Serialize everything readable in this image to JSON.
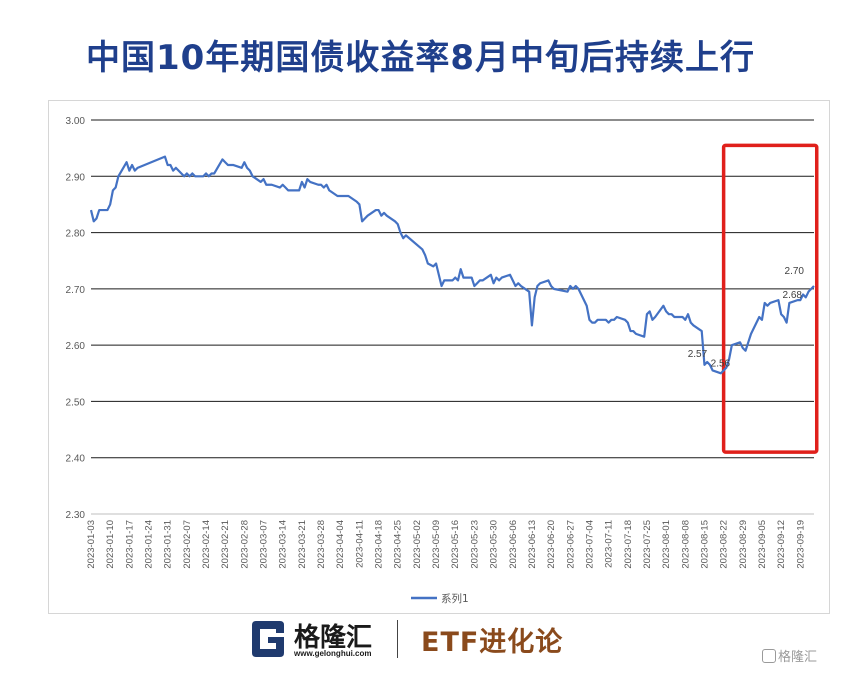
{
  "header": {
    "title": "中国10年期国债收益率8月中旬后持续上行"
  },
  "chart_data": {
    "type": "line",
    "ylim": [
      2.3,
      3.0
    ],
    "yticks": [
      "3.00",
      "2.90",
      "2.80",
      "2.70",
      "2.60",
      "2.50",
      "2.40",
      "2.30"
    ],
    "xticks": [
      "2023-01-03",
      "2023-01-10",
      "2023-01-17",
      "2023-01-24",
      "2023-01-31",
      "2023-02-07",
      "2023-02-14",
      "2023-02-21",
      "2023-02-28",
      "2023-03-07",
      "2023-03-14",
      "2023-03-21",
      "2023-03-28",
      "2023-04-04",
      "2023-04-11",
      "2023-04-18",
      "2023-04-25",
      "2023-05-02",
      "2023-05-09",
      "2023-05-16",
      "2023-05-23",
      "2023-05-30",
      "2023-06-06",
      "2023-06-13",
      "2023-06-20",
      "2023-06-27",
      "2023-07-04",
      "2023-07-11",
      "2023-07-18",
      "2023-07-25",
      "2023-08-01",
      "2023-08-08",
      "2023-08-15",
      "2023-08-22",
      "2023-08-29",
      "2023-09-05",
      "2023-09-12",
      "2023-09-19"
    ],
    "x_end": "2023-09-24",
    "series": [
      {
        "name": "系列1",
        "color": "#4472c4",
        "points": [
          [
            "2023-01-03",
            2.84
          ],
          [
            "2023-01-04",
            2.82
          ],
          [
            "2023-01-05",
            2.825
          ],
          [
            "2023-01-06",
            2.84
          ],
          [
            "2023-01-09",
            2.84
          ],
          [
            "2023-01-10",
            2.85
          ],
          [
            "2023-01-11",
            2.875
          ],
          [
            "2023-01-12",
            2.88
          ],
          [
            "2023-01-13",
            2.9
          ],
          [
            "2023-01-16",
            2.925
          ],
          [
            "2023-01-17",
            2.91
          ],
          [
            "2023-01-18",
            2.92
          ],
          [
            "2023-01-19",
            2.91
          ],
          [
            "2023-01-20",
            2.915
          ],
          [
            "2023-01-30",
            2.935
          ],
          [
            "2023-01-31",
            2.92
          ],
          [
            "2023-02-01",
            2.92
          ],
          [
            "2023-02-02",
            2.91
          ],
          [
            "2023-02-03",
            2.915
          ],
          [
            "2023-02-06",
            2.9
          ],
          [
            "2023-02-07",
            2.905
          ],
          [
            "2023-02-08",
            2.9
          ],
          [
            "2023-02-09",
            2.905
          ],
          [
            "2023-02-10",
            2.9
          ],
          [
            "2023-02-13",
            2.9
          ],
          [
            "2023-02-14",
            2.905
          ],
          [
            "2023-02-15",
            2.9
          ],
          [
            "2023-02-16",
            2.905
          ],
          [
            "2023-02-17",
            2.905
          ],
          [
            "2023-02-20",
            2.93
          ],
          [
            "2023-02-21",
            2.925
          ],
          [
            "2023-02-22",
            2.92
          ],
          [
            "2023-02-23",
            2.92
          ],
          [
            "2023-02-24",
            2.92
          ],
          [
            "2023-02-27",
            2.915
          ],
          [
            "2023-02-28",
            2.925
          ],
          [
            "2023-03-01",
            2.915
          ],
          [
            "2023-03-02",
            2.91
          ],
          [
            "2023-03-03",
            2.9
          ],
          [
            "2023-03-06",
            2.89
          ],
          [
            "2023-03-07",
            2.895
          ],
          [
            "2023-03-08",
            2.885
          ],
          [
            "2023-03-09",
            2.885
          ],
          [
            "2023-03-10",
            2.885
          ],
          [
            "2023-03-13",
            2.88
          ],
          [
            "2023-03-14",
            2.885
          ],
          [
            "2023-03-15",
            2.88
          ],
          [
            "2023-03-16",
            2.875
          ],
          [
            "2023-03-17",
            2.875
          ],
          [
            "2023-03-20",
            2.875
          ],
          [
            "2023-03-21",
            2.89
          ],
          [
            "2023-03-22",
            2.88
          ],
          [
            "2023-03-23",
            2.895
          ],
          [
            "2023-03-24",
            2.89
          ],
          [
            "2023-03-27",
            2.885
          ],
          [
            "2023-03-28",
            2.885
          ],
          [
            "2023-03-29",
            2.88
          ],
          [
            "2023-03-30",
            2.885
          ],
          [
            "2023-03-31",
            2.875
          ],
          [
            "2023-04-03",
            2.865
          ],
          [
            "2023-04-04",
            2.865
          ],
          [
            "2023-04-06",
            2.865
          ],
          [
            "2023-04-07",
            2.865
          ],
          [
            "2023-04-10",
            2.855
          ],
          [
            "2023-04-11",
            2.85
          ],
          [
            "2023-04-12",
            2.82
          ],
          [
            "2023-04-13",
            2.825
          ],
          [
            "2023-04-14",
            2.83
          ],
          [
            "2023-04-17",
            2.84
          ],
          [
            "2023-04-18",
            2.84
          ],
          [
            "2023-04-19",
            2.83
          ],
          [
            "2023-04-20",
            2.835
          ],
          [
            "2023-04-21",
            2.83
          ],
          [
            "2023-04-24",
            2.82
          ],
          [
            "2023-04-25",
            2.815
          ],
          [
            "2023-04-26",
            2.8
          ],
          [
            "2023-04-27",
            2.79
          ],
          [
            "2023-04-28",
            2.795
          ],
          [
            "2023-05-04",
            2.77
          ],
          [
            "2023-05-05",
            2.76
          ],
          [
            "2023-05-06",
            2.745
          ],
          [
            "2023-05-08",
            2.74
          ],
          [
            "2023-05-09",
            2.745
          ],
          [
            "2023-05-10",
            2.725
          ],
          [
            "2023-05-11",
            2.705
          ],
          [
            "2023-05-12",
            2.715
          ],
          [
            "2023-05-15",
            2.715
          ],
          [
            "2023-05-16",
            2.72
          ],
          [
            "2023-05-17",
            2.715
          ],
          [
            "2023-05-18",
            2.735
          ],
          [
            "2023-05-19",
            2.72
          ],
          [
            "2023-05-22",
            2.72
          ],
          [
            "2023-05-23",
            2.705
          ],
          [
            "2023-05-24",
            2.71
          ],
          [
            "2023-05-25",
            2.715
          ],
          [
            "2023-05-26",
            2.715
          ],
          [
            "2023-05-29",
            2.725
          ],
          [
            "2023-05-30",
            2.71
          ],
          [
            "2023-05-31",
            2.72
          ],
          [
            "2023-06-01",
            2.715
          ],
          [
            "2023-06-02",
            2.72
          ],
          [
            "2023-06-05",
            2.725
          ],
          [
            "2023-06-06",
            2.715
          ],
          [
            "2023-06-07",
            2.705
          ],
          [
            "2023-06-08",
            2.71
          ],
          [
            "2023-06-09",
            2.705
          ],
          [
            "2023-06-12",
            2.695
          ],
          [
            "2023-06-13",
            2.635
          ],
          [
            "2023-06-14",
            2.685
          ],
          [
            "2023-06-15",
            2.705
          ],
          [
            "2023-06-16",
            2.71
          ],
          [
            "2023-06-19",
            2.715
          ],
          [
            "2023-06-20",
            2.705
          ],
          [
            "2023-06-21",
            2.7
          ],
          [
            "2023-06-26",
            2.695
          ],
          [
            "2023-06-27",
            2.705
          ],
          [
            "2023-06-28",
            2.7
          ],
          [
            "2023-06-29",
            2.705
          ],
          [
            "2023-06-30",
            2.7
          ],
          [
            "2023-07-03",
            2.67
          ],
          [
            "2023-07-04",
            2.645
          ],
          [
            "2023-07-05",
            2.64
          ],
          [
            "2023-07-06",
            2.64
          ],
          [
            "2023-07-07",
            2.645
          ],
          [
            "2023-07-10",
            2.645
          ],
          [
            "2023-07-11",
            2.64
          ],
          [
            "2023-07-12",
            2.645
          ],
          [
            "2023-07-13",
            2.645
          ],
          [
            "2023-07-14",
            2.65
          ],
          [
            "2023-07-17",
            2.645
          ],
          [
            "2023-07-18",
            2.64
          ],
          [
            "2023-07-19",
            2.625
          ],
          [
            "2023-07-20",
            2.625
          ],
          [
            "2023-07-21",
            2.62
          ],
          [
            "2023-07-24",
            2.615
          ],
          [
            "2023-07-25",
            2.655
          ],
          [
            "2023-07-26",
            2.66
          ],
          [
            "2023-07-27",
            2.645
          ],
          [
            "2023-07-28",
            2.65
          ],
          [
            "2023-07-31",
            2.67
          ],
          [
            "2023-08-01",
            2.66
          ],
          [
            "2023-08-02",
            2.655
          ],
          [
            "2023-08-03",
            2.655
          ],
          [
            "2023-08-04",
            2.65
          ],
          [
            "2023-08-07",
            2.65
          ],
          [
            "2023-08-08",
            2.645
          ],
          [
            "2023-08-09",
            2.655
          ],
          [
            "2023-08-10",
            2.64
          ],
          [
            "2023-08-11",
            2.635
          ],
          [
            "2023-08-14",
            2.625
          ],
          [
            "2023-08-15",
            2.565
          ],
          [
            "2023-08-16",
            2.57
          ],
          [
            "2023-08-17",
            2.565
          ],
          [
            "2023-08-18",
            2.555
          ],
          [
            "2023-08-21",
            2.55
          ],
          [
            "2023-08-22",
            2.555
          ],
          [
            "2023-08-23",
            2.56
          ],
          [
            "2023-08-24",
            2.575
          ],
          [
            "2023-08-25",
            2.6
          ],
          [
            "2023-08-28",
            2.605
          ],
          [
            "2023-08-29",
            2.595
          ],
          [
            "2023-08-30",
            2.59
          ],
          [
            "2023-08-31",
            2.605
          ],
          [
            "2023-09-01",
            2.62
          ],
          [
            "2023-09-04",
            2.65
          ],
          [
            "2023-09-05",
            2.645
          ],
          [
            "2023-09-06",
            2.675
          ],
          [
            "2023-09-07",
            2.67
          ],
          [
            "2023-09-08",
            2.675
          ],
          [
            "2023-09-11",
            2.68
          ],
          [
            "2023-09-12",
            2.655
          ],
          [
            "2023-09-13",
            2.65
          ],
          [
            "2023-09-14",
            2.64
          ],
          [
            "2023-09-15",
            2.675
          ],
          [
            "2023-09-18",
            2.68
          ],
          [
            "2023-09-19",
            2.68
          ],
          [
            "2023-09-20",
            2.69
          ],
          [
            "2023-09-21",
            2.685
          ],
          [
            "2023-09-22",
            2.695
          ],
          [
            "2023-09-24",
            2.705
          ]
        ]
      }
    ],
    "data_labels": [
      {
        "x": "2023-08-14",
        "y": 2.57,
        "text": "2.57"
      },
      {
        "x": "2023-08-18",
        "y": 2.56,
        "text": "2.56"
      },
      {
        "x": "2023-09-22",
        "y": 2.68,
        "text": "2.68"
      },
      {
        "x": "2023-09-22",
        "y": 2.7,
        "text": "2.70"
      }
    ],
    "highlight_range": {
      "x_start": "2023-08-22",
      "x_end": "2023-09-25",
      "y_low": 2.41,
      "y_high": 2.955,
      "color": "#e0201b"
    },
    "grid": true,
    "legend_position": "bottom"
  },
  "footer": {
    "logo_text": "格隆汇",
    "logo_url": "www.gelonghui.com",
    "brand": "ETF进化论",
    "watermark": "格隆汇"
  }
}
